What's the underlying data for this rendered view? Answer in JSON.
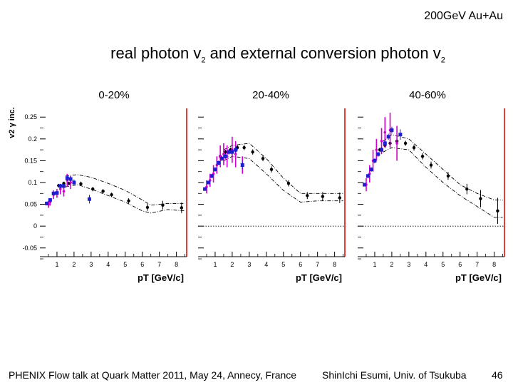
{
  "header": {
    "tag": "200GeV Au+Au"
  },
  "slide_title": {
    "text": "real photon v",
    "sub1": "2",
    "mid": " and external conversion photon v",
    "sub2": "2"
  },
  "footer": {
    "left": "PHENIX Flow talk at Quark Matter 2011, May 24, Annecy, France",
    "middle": "ShinIchi Esumi, Univ. of Tsukuba",
    "page": "46"
  },
  "chart_data": [
    {
      "type": "scatter",
      "title": "0-20%",
      "ylabel": "v2 γ inc.",
      "xlabel": "pT [GeV/c]",
      "xlim": [
        0,
        8.6
      ],
      "ylim": [
        -0.07,
        0.27
      ],
      "xticks": [
        1,
        2,
        3,
        4,
        5,
        6,
        7,
        8
      ],
      "yticks": [
        -0.05,
        0,
        0.05,
        0.1,
        0.15,
        0.2,
        0.25
      ],
      "ytick_labels": [
        "-0.05",
        "0",
        "0.05",
        "0.1",
        "0.15",
        "0.2",
        "0.25"
      ],
      "colors": {
        "black": "#000000",
        "blue": "#1f1fd0",
        "magenta": "#d000d0",
        "frame_right": "#d00000"
      },
      "series": [
        {
          "name": "inclusive photon v2",
          "color": "#000000",
          "x": [
            1.1,
            1.4,
            1.7,
            2.0,
            2.4,
            3.1,
            3.7,
            4.2,
            5.2,
            6.3,
            7.2,
            8.3
          ],
          "y": [
            0.093,
            0.098,
            0.098,
            0.1,
            0.097,
            0.085,
            0.08,
            0.072,
            0.058,
            0.043,
            0.048,
            0.042
          ],
          "err": [
            0.004,
            0.004,
            0.004,
            0.005,
            0.005,
            0.005,
            0.005,
            0.005,
            0.006,
            0.008,
            0.01,
            0.012
          ]
        },
        {
          "name": "real photon v2 (magenta)",
          "color": "#d000d0",
          "x": [
            0.5,
            0.6,
            0.8,
            1.0,
            1.2,
            1.4,
            1.6,
            1.8
          ],
          "y": [
            0.05,
            0.055,
            0.072,
            0.075,
            0.085,
            0.08,
            0.105,
            0.1
          ],
          "err": [
            0.008,
            0.008,
            0.01,
            0.01,
            0.012,
            0.012,
            0.015,
            0.015
          ]
        },
        {
          "name": "conversion photon v2 (blue)",
          "color": "#1f1fd0",
          "x": [
            0.4,
            0.6,
            0.8,
            1.0,
            1.2,
            1.4,
            1.6,
            1.8,
            2.0,
            2.9
          ],
          "y": [
            0.052,
            0.06,
            0.075,
            0.076,
            0.092,
            0.092,
            0.11,
            0.108,
            0.1,
            0.062
          ],
          "err": [
            0.004,
            0.004,
            0.004,
            0.004,
            0.005,
            0.005,
            0.006,
            0.006,
            0.007,
            0.01
          ]
        }
      ],
      "band": {
        "x": [
          1.5,
          2.2,
          3.0,
          4.0,
          5.0,
          6.0,
          6.5,
          7.5,
          8.5
        ],
        "upper": [
          0.115,
          0.118,
          0.112,
          0.098,
          0.082,
          0.06,
          0.048,
          0.052,
          0.052
        ],
        "lower": [
          0.09,
          0.095,
          0.085,
          0.07,
          0.055,
          0.035,
          0.03,
          0.038,
          0.035
        ]
      },
      "zero_line": false
    },
    {
      "type": "scatter",
      "title": "20-40%",
      "xlabel": "pT [GeV/c]",
      "xlim": [
        0,
        8.6
      ],
      "ylim": [
        -0.07,
        0.27
      ],
      "xticks": [
        1,
        2,
        3,
        4,
        5,
        6,
        7,
        8
      ],
      "series": [
        {
          "name": "inclusive photon v2",
          "color": "#000000",
          "x": [
            1.3,
            1.6,
            1.9,
            2.3,
            2.7,
            3.2,
            3.8,
            4.3,
            5.3,
            6.4,
            7.3,
            8.3
          ],
          "y": [
            0.16,
            0.17,
            0.175,
            0.18,
            0.18,
            0.17,
            0.155,
            0.13,
            0.098,
            0.07,
            0.068,
            0.065
          ],
          "err": [
            0.005,
            0.005,
            0.005,
            0.006,
            0.006,
            0.006,
            0.006,
            0.007,
            0.007,
            0.008,
            0.01,
            0.012
          ]
        },
        {
          "name": "real photon v2 (magenta)",
          "color": "#d000d0",
          "x": [
            0.5,
            0.7,
            0.9,
            1.1,
            1.3,
            1.5,
            1.7,
            2.0,
            2.2,
            2.6
          ],
          "y": [
            0.09,
            0.105,
            0.12,
            0.14,
            0.16,
            0.165,
            0.16,
            0.175,
            0.165,
            0.14
          ],
          "err": [
            0.015,
            0.015,
            0.02,
            0.02,
            0.025,
            0.025,
            0.025,
            0.03,
            0.03,
            0.02
          ]
        },
        {
          "name": "conversion photon v2 (blue)",
          "color": "#1f1fd0",
          "x": [
            0.4,
            0.6,
            0.8,
            1.0,
            1.2,
            1.4,
            1.6,
            1.8,
            2.0,
            2.2,
            2.6
          ],
          "y": [
            0.085,
            0.1,
            0.115,
            0.13,
            0.145,
            0.155,
            0.16,
            0.17,
            0.17,
            0.175,
            0.14
          ],
          "err": [
            0.004,
            0.004,
            0.005,
            0.005,
            0.005,
            0.006,
            0.006,
            0.006,
            0.007,
            0.007,
            0.01
          ]
        }
      ],
      "band": {
        "x": [
          1.5,
          2.0,
          3.0,
          4.0,
          5.0,
          6.0,
          7.0,
          7.5,
          8.5
        ],
        "upper": [
          0.175,
          0.185,
          0.19,
          0.155,
          0.11,
          0.075,
          0.075,
          0.075,
          0.075
        ],
        "lower": [
          0.15,
          0.16,
          0.155,
          0.12,
          0.082,
          0.055,
          0.058,
          0.058,
          0.058
        ]
      },
      "zero_line": true
    },
    {
      "type": "scatter",
      "title": "40-60%",
      "xlabel": "pT [GeV/c]",
      "xlim": [
        0,
        8.6
      ],
      "ylim": [
        -0.07,
        0.27
      ],
      "xticks": [
        1,
        2,
        3,
        4,
        5,
        6,
        7,
        8
      ],
      "series": [
        {
          "name": "inclusive photon v2",
          "color": "#000000",
          "x": [
            1.3,
            1.6,
            1.9,
            2.3,
            2.8,
            3.3,
            3.8,
            4.3,
            5.3,
            6.4,
            7.2,
            8.2
          ],
          "y": [
            0.175,
            0.185,
            0.19,
            0.195,
            0.19,
            0.18,
            0.16,
            0.14,
            0.115,
            0.085,
            0.063,
            0.035
          ],
          "err": [
            0.005,
            0.006,
            0.006,
            0.006,
            0.006,
            0.007,
            0.007,
            0.008,
            0.009,
            0.012,
            0.02,
            0.03
          ]
        },
        {
          "name": "real photon v2 (magenta)",
          "color": "#d000d0",
          "x": [
            0.5,
            0.7,
            0.9,
            1.1,
            1.4,
            1.6,
            1.9,
            2.3
          ],
          "y": [
            0.095,
            0.12,
            0.15,
            0.175,
            0.195,
            0.215,
            0.22,
            0.19
          ],
          "err": [
            0.015,
            0.02,
            0.025,
            0.025,
            0.03,
            0.035,
            0.04,
            0.04
          ]
        },
        {
          "name": "conversion photon v2 (blue)",
          "color": "#1f1fd0",
          "x": [
            0.4,
            0.6,
            0.8,
            1.0,
            1.2,
            1.4,
            1.6,
            1.8,
            2.0,
            2.5
          ],
          "y": [
            0.095,
            0.115,
            0.13,
            0.15,
            0.165,
            0.175,
            0.19,
            0.205,
            0.22,
            0.21
          ],
          "err": [
            0.004,
            0.005,
            0.005,
            0.006,
            0.006,
            0.006,
            0.007,
            0.007,
            0.008,
            0.012
          ]
        }
      ],
      "band": {
        "x": [
          1.5,
          2.0,
          3.0,
          4.0,
          5.0,
          6.0,
          7.0,
          8.0,
          8.5
        ],
        "upper": [
          0.195,
          0.21,
          0.2,
          0.165,
          0.13,
          0.095,
          0.075,
          0.06,
          0.06
        ],
        "lower": [
          0.17,
          0.18,
          0.175,
          0.135,
          0.1,
          0.07,
          0.045,
          0.02,
          0.02
        ]
      },
      "zero_line": true
    }
  ]
}
